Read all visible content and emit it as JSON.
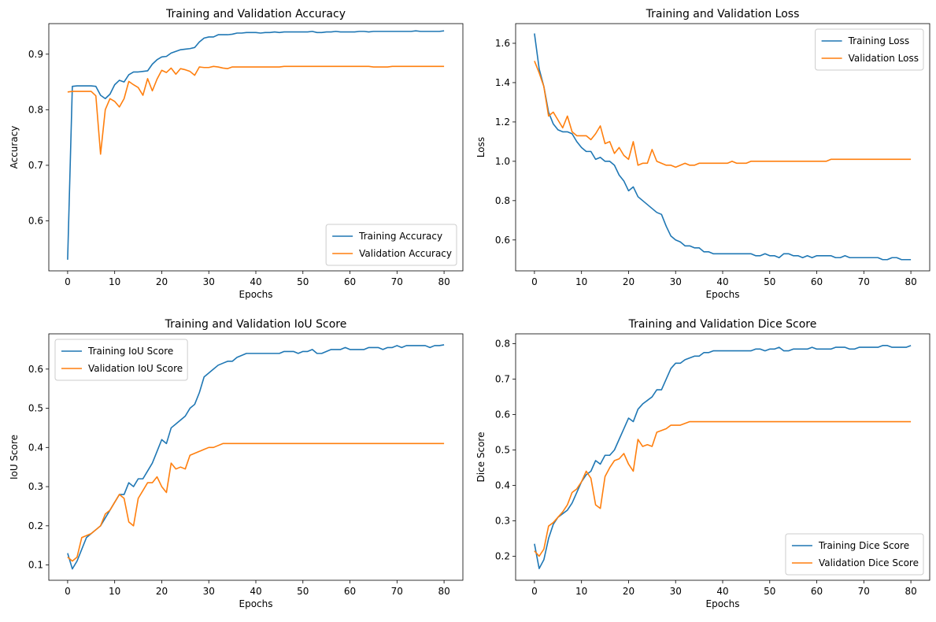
{
  "chart_data": [
    {
      "type": "line",
      "title": "Training and Validation Accuracy",
      "xlabel": "Epochs",
      "ylabel": "Accuracy",
      "xlim": [
        -4,
        84
      ],
      "ylim": [
        0.51,
        0.955
      ],
      "xticks": [
        0,
        10,
        20,
        30,
        40,
        50,
        60,
        70,
        80
      ],
      "yticks": [
        0.6,
        0.7,
        0.8,
        0.9
      ],
      "tick_decimals": 1,
      "legend_loc": "bottom-right",
      "x": [
        0,
        1,
        2,
        3,
        4,
        5,
        6,
        7,
        8,
        9,
        10,
        11,
        12,
        13,
        14,
        15,
        16,
        17,
        18,
        19,
        20,
        21,
        22,
        23,
        24,
        25,
        26,
        27,
        28,
        29,
        30,
        31,
        32,
        33,
        34,
        35,
        36,
        37,
        38,
        39,
        40,
        41,
        42,
        43,
        44,
        45,
        46,
        47,
        48,
        49,
        50,
        51,
        52,
        53,
        54,
        55,
        56,
        57,
        58,
        59,
        60,
        61,
        62,
        63,
        64,
        65,
        66,
        67,
        68,
        69,
        70,
        71,
        72,
        73,
        74,
        75,
        76,
        77,
        78,
        79,
        80
      ],
      "series": [
        {
          "name": "Training Accuracy",
          "color": "#1f77b4",
          "values": [
            0.53,
            0.842,
            0.843,
            0.843,
            0.843,
            0.843,
            0.842,
            0.826,
            0.82,
            0.828,
            0.845,
            0.853,
            0.85,
            0.863,
            0.868,
            0.868,
            0.869,
            0.87,
            0.882,
            0.89,
            0.895,
            0.896,
            0.902,
            0.905,
            0.908,
            0.909,
            0.91,
            0.912,
            0.922,
            0.929,
            0.931,
            0.931,
            0.935,
            0.935,
            0.935,
            0.936,
            0.938,
            0.938,
            0.939,
            0.939,
            0.939,
            0.938,
            0.939,
            0.939,
            0.94,
            0.939,
            0.94,
            0.94,
            0.94,
            0.94,
            0.94,
            0.94,
            0.941,
            0.939,
            0.939,
            0.94,
            0.94,
            0.941,
            0.94,
            0.94,
            0.94,
            0.94,
            0.941,
            0.941,
            0.94,
            0.941,
            0.941,
            0.941,
            0.941,
            0.941,
            0.941,
            0.941,
            0.941,
            0.941,
            0.942,
            0.941,
            0.941,
            0.941,
            0.941,
            0.941,
            0.942
          ]
        },
        {
          "name": "Validation Accuracy",
          "color": "#ff7f0e",
          "values": [
            0.832,
            0.833,
            0.833,
            0.833,
            0.833,
            0.833,
            0.825,
            0.72,
            0.8,
            0.82,
            0.815,
            0.805,
            0.82,
            0.851,
            0.845,
            0.84,
            0.826,
            0.856,
            0.834,
            0.855,
            0.871,
            0.867,
            0.875,
            0.864,
            0.874,
            0.872,
            0.869,
            0.862,
            0.877,
            0.876,
            0.876,
            0.878,
            0.877,
            0.875,
            0.874,
            0.877,
            0.877,
            0.877,
            0.877,
            0.877,
            0.877,
            0.877,
            0.877,
            0.877,
            0.877,
            0.877,
            0.878,
            0.878,
            0.878,
            0.878,
            0.878,
            0.878,
            0.878,
            0.878,
            0.878,
            0.878,
            0.878,
            0.878,
            0.878,
            0.878,
            0.878,
            0.878,
            0.878,
            0.878,
            0.878,
            0.877,
            0.877,
            0.877,
            0.877,
            0.878,
            0.878,
            0.878,
            0.878,
            0.878,
            0.878,
            0.878,
            0.878,
            0.878,
            0.878,
            0.878,
            0.878
          ]
        }
      ]
    },
    {
      "type": "line",
      "title": "Training and Validation Loss",
      "xlabel": "Epochs",
      "ylabel": "Loss",
      "xlim": [
        -4,
        84
      ],
      "ylim": [
        0.443,
        1.7
      ],
      "xticks": [
        0,
        10,
        20,
        30,
        40,
        50,
        60,
        70,
        80
      ],
      "yticks": [
        0.6,
        0.8,
        1.0,
        1.2,
        1.4,
        1.6
      ],
      "tick_decimals": 1,
      "legend_loc": "top-right",
      "x": [
        0,
        1,
        2,
        3,
        4,
        5,
        6,
        7,
        8,
        9,
        10,
        11,
        12,
        13,
        14,
        15,
        16,
        17,
        18,
        19,
        20,
        21,
        22,
        23,
        24,
        25,
        26,
        27,
        28,
        29,
        30,
        31,
        32,
        33,
        34,
        35,
        36,
        37,
        38,
        39,
        40,
        41,
        42,
        43,
        44,
        45,
        46,
        47,
        48,
        49,
        50,
        51,
        52,
        53,
        54,
        55,
        56,
        57,
        58,
        59,
        60,
        61,
        62,
        63,
        64,
        65,
        66,
        67,
        68,
        69,
        70,
        71,
        72,
        73,
        74,
        75,
        76,
        77,
        78,
        79,
        80
      ],
      "series": [
        {
          "name": "Training Loss",
          "color": "#1f77b4",
          "values": [
            1.65,
            1.47,
            1.38,
            1.25,
            1.19,
            1.16,
            1.15,
            1.15,
            1.14,
            1.1,
            1.07,
            1.05,
            1.05,
            1.01,
            1.02,
            1.0,
            1.0,
            0.98,
            0.93,
            0.9,
            0.85,
            0.87,
            0.82,
            0.8,
            0.78,
            0.76,
            0.74,
            0.73,
            0.67,
            0.62,
            0.6,
            0.59,
            0.57,
            0.57,
            0.56,
            0.56,
            0.54,
            0.54,
            0.53,
            0.53,
            0.53,
            0.53,
            0.53,
            0.53,
            0.53,
            0.53,
            0.53,
            0.52,
            0.52,
            0.53,
            0.52,
            0.52,
            0.51,
            0.53,
            0.53,
            0.52,
            0.52,
            0.51,
            0.52,
            0.51,
            0.52,
            0.52,
            0.52,
            0.52,
            0.51,
            0.51,
            0.52,
            0.51,
            0.51,
            0.51,
            0.51,
            0.51,
            0.51,
            0.51,
            0.5,
            0.5,
            0.51,
            0.51,
            0.5,
            0.5,
            0.5
          ]
        },
        {
          "name": "Validation Loss",
          "color": "#ff7f0e",
          "values": [
            1.51,
            1.45,
            1.38,
            1.23,
            1.25,
            1.21,
            1.17,
            1.23,
            1.15,
            1.13,
            1.13,
            1.13,
            1.11,
            1.14,
            1.18,
            1.09,
            1.1,
            1.04,
            1.07,
            1.03,
            1.01,
            1.1,
            0.98,
            0.99,
            0.99,
            1.06,
            1.0,
            0.99,
            0.98,
            0.98,
            0.97,
            0.98,
            0.99,
            0.98,
            0.98,
            0.99,
            0.99,
            0.99,
            0.99,
            0.99,
            0.99,
            0.99,
            1.0,
            0.99,
            0.99,
            0.99,
            1.0,
            1.0,
            1.0,
            1.0,
            1.0,
            1.0,
            1.0,
            1.0,
            1.0,
            1.0,
            1.0,
            1.0,
            1.0,
            1.0,
            1.0,
            1.0,
            1.0,
            1.01,
            1.01,
            1.01,
            1.01,
            1.01,
            1.01,
            1.01,
            1.01,
            1.01,
            1.01,
            1.01,
            1.01,
            1.01,
            1.01,
            1.01,
            1.01,
            1.01,
            1.01
          ]
        }
      ]
    },
    {
      "type": "line",
      "title": "Training and Validation IoU Score",
      "xlabel": "Epochs",
      "ylabel": "IoU Score",
      "xlim": [
        -4,
        84
      ],
      "ylim": [
        0.061,
        0.69
      ],
      "xticks": [
        0,
        10,
        20,
        30,
        40,
        50,
        60,
        70,
        80
      ],
      "yticks": [
        0.1,
        0.2,
        0.3,
        0.4,
        0.5,
        0.6
      ],
      "tick_decimals": 1,
      "legend_loc": "top-left",
      "x": [
        0,
        1,
        2,
        3,
        4,
        5,
        6,
        7,
        8,
        9,
        10,
        11,
        12,
        13,
        14,
        15,
        16,
        17,
        18,
        19,
        20,
        21,
        22,
        23,
        24,
        25,
        26,
        27,
        28,
        29,
        30,
        31,
        32,
        33,
        34,
        35,
        36,
        37,
        38,
        39,
        40,
        41,
        42,
        43,
        44,
        45,
        46,
        47,
        48,
        49,
        50,
        51,
        52,
        53,
        54,
        55,
        56,
        57,
        58,
        59,
        60,
        61,
        62,
        63,
        64,
        65,
        66,
        67,
        68,
        69,
        70,
        71,
        72,
        73,
        74,
        75,
        76,
        77,
        78,
        79,
        80
      ],
      "series": [
        {
          "name": "Training IoU Score",
          "color": "#1f77b4",
          "values": [
            0.13,
            0.09,
            0.11,
            0.14,
            0.17,
            0.18,
            0.19,
            0.2,
            0.22,
            0.24,
            0.26,
            0.28,
            0.28,
            0.31,
            0.3,
            0.32,
            0.32,
            0.34,
            0.36,
            0.39,
            0.42,
            0.41,
            0.45,
            0.46,
            0.47,
            0.48,
            0.5,
            0.51,
            0.54,
            0.58,
            0.59,
            0.6,
            0.61,
            0.615,
            0.62,
            0.62,
            0.63,
            0.635,
            0.64,
            0.64,
            0.64,
            0.64,
            0.64,
            0.64,
            0.64,
            0.64,
            0.645,
            0.645,
            0.645,
            0.64,
            0.645,
            0.645,
            0.65,
            0.64,
            0.64,
            0.645,
            0.65,
            0.65,
            0.65,
            0.655,
            0.65,
            0.65,
            0.65,
            0.65,
            0.655,
            0.655,
            0.655,
            0.65,
            0.655,
            0.655,
            0.66,
            0.655,
            0.66,
            0.66,
            0.66,
            0.66,
            0.66,
            0.655,
            0.66,
            0.66,
            0.662
          ]
        },
        {
          "name": "Validation IoU Score",
          "color": "#ff7f0e",
          "values": [
            0.12,
            0.11,
            0.12,
            0.17,
            0.175,
            0.18,
            0.19,
            0.2,
            0.23,
            0.24,
            0.26,
            0.28,
            0.27,
            0.21,
            0.2,
            0.27,
            0.29,
            0.31,
            0.31,
            0.325,
            0.3,
            0.285,
            0.36,
            0.345,
            0.35,
            0.345,
            0.38,
            0.385,
            0.39,
            0.395,
            0.4,
            0.4,
            0.405,
            0.41,
            0.41,
            0.41,
            0.41,
            0.41,
            0.41,
            0.41,
            0.41,
            0.41,
            0.41,
            0.41,
            0.41,
            0.41,
            0.41,
            0.41,
            0.41,
            0.41,
            0.41,
            0.41,
            0.41,
            0.41,
            0.41,
            0.41,
            0.41,
            0.41,
            0.41,
            0.41,
            0.41,
            0.41,
            0.41,
            0.41,
            0.41,
            0.41,
            0.41,
            0.41,
            0.41,
            0.41,
            0.41,
            0.41,
            0.41,
            0.41,
            0.41,
            0.41,
            0.41,
            0.41,
            0.41,
            0.41,
            0.41
          ]
        }
      ]
    },
    {
      "type": "line",
      "title": "Training and Validation Dice Score",
      "xlabel": "Epochs",
      "ylabel": "Dice Score",
      "xlim": [
        -4,
        84
      ],
      "ylim": [
        0.132,
        0.828
      ],
      "xticks": [
        0,
        10,
        20,
        30,
        40,
        50,
        60,
        70,
        80
      ],
      "yticks": [
        0.2,
        0.3,
        0.4,
        0.5,
        0.6,
        0.7,
        0.8
      ],
      "tick_decimals": 1,
      "legend_loc": "bottom-right",
      "x": [
        0,
        1,
        2,
        3,
        4,
        5,
        6,
        7,
        8,
        9,
        10,
        11,
        12,
        13,
        14,
        15,
        16,
        17,
        18,
        19,
        20,
        21,
        22,
        23,
        24,
        25,
        26,
        27,
        28,
        29,
        30,
        31,
        32,
        33,
        34,
        35,
        36,
        37,
        38,
        39,
        40,
        41,
        42,
        43,
        44,
        45,
        46,
        47,
        48,
        49,
        50,
        51,
        52,
        53,
        54,
        55,
        56,
        57,
        58,
        59,
        60,
        61,
        62,
        63,
        64,
        65,
        66,
        67,
        68,
        69,
        70,
        71,
        72,
        73,
        74,
        75,
        76,
        77,
        78,
        79,
        80
      ],
      "series": [
        {
          "name": "Training Dice Score",
          "color": "#1f77b4",
          "values": [
            0.235,
            0.165,
            0.19,
            0.25,
            0.29,
            0.31,
            0.32,
            0.33,
            0.35,
            0.38,
            0.41,
            0.43,
            0.44,
            0.47,
            0.46,
            0.485,
            0.485,
            0.5,
            0.53,
            0.56,
            0.59,
            0.58,
            0.615,
            0.63,
            0.64,
            0.65,
            0.67,
            0.67,
            0.7,
            0.73,
            0.745,
            0.745,
            0.755,
            0.76,
            0.765,
            0.765,
            0.775,
            0.775,
            0.78,
            0.78,
            0.78,
            0.78,
            0.78,
            0.78,
            0.78,
            0.78,
            0.78,
            0.785,
            0.785,
            0.78,
            0.785,
            0.785,
            0.79,
            0.78,
            0.78,
            0.785,
            0.785,
            0.785,
            0.785,
            0.79,
            0.785,
            0.785,
            0.785,
            0.785,
            0.79,
            0.79,
            0.79,
            0.785,
            0.785,
            0.79,
            0.79,
            0.79,
            0.79,
            0.79,
            0.795,
            0.795,
            0.79,
            0.79,
            0.79,
            0.79,
            0.795
          ]
        },
        {
          "name": "Validation Dice Score",
          "color": "#ff7f0e",
          "values": [
            0.215,
            0.2,
            0.22,
            0.285,
            0.295,
            0.31,
            0.325,
            0.345,
            0.38,
            0.39,
            0.41,
            0.44,
            0.42,
            0.345,
            0.335,
            0.425,
            0.45,
            0.47,
            0.475,
            0.49,
            0.46,
            0.44,
            0.53,
            0.51,
            0.515,
            0.51,
            0.55,
            0.555,
            0.56,
            0.57,
            0.57,
            0.57,
            0.575,
            0.58,
            0.58,
            0.58,
            0.58,
            0.58,
            0.58,
            0.58,
            0.58,
            0.58,
            0.58,
            0.58,
            0.58,
            0.58,
            0.58,
            0.58,
            0.58,
            0.58,
            0.58,
            0.58,
            0.58,
            0.58,
            0.58,
            0.58,
            0.58,
            0.58,
            0.58,
            0.58,
            0.58,
            0.58,
            0.58,
            0.58,
            0.58,
            0.58,
            0.58,
            0.58,
            0.58,
            0.58,
            0.58,
            0.58,
            0.58,
            0.58,
            0.58,
            0.58,
            0.58,
            0.58,
            0.58,
            0.58,
            0.58
          ]
        }
      ]
    }
  ]
}
